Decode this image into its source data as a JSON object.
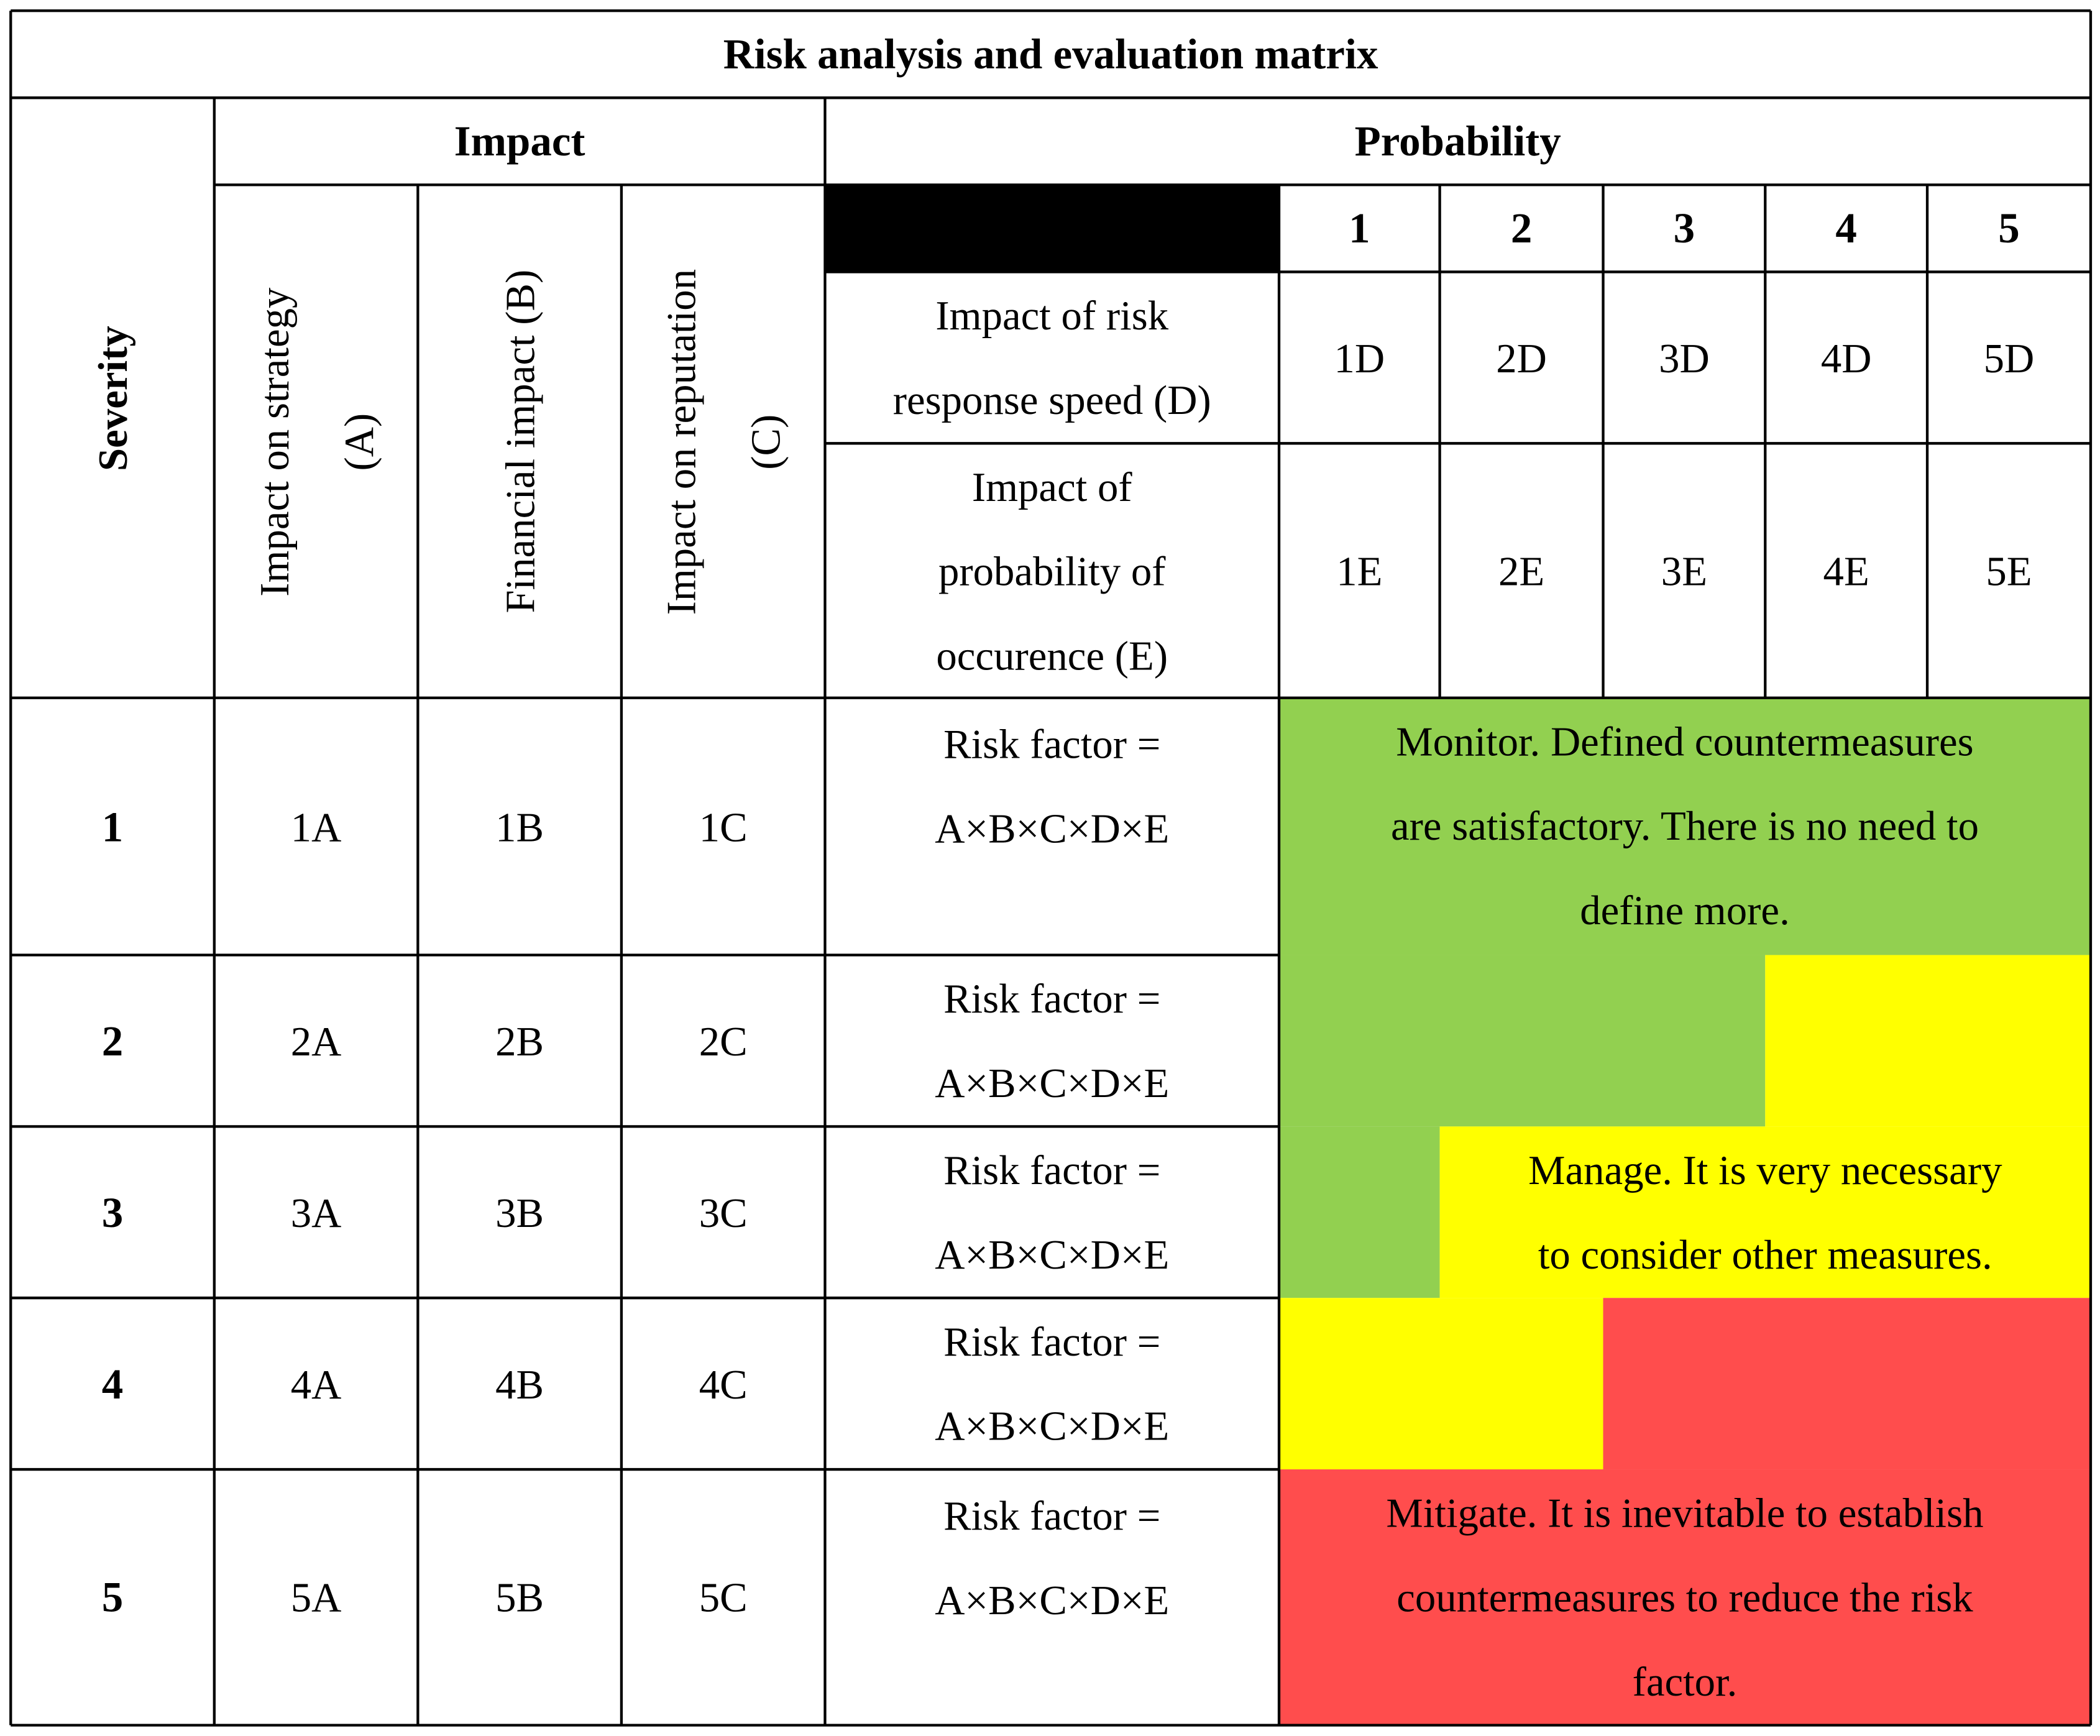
{
  "title": "Risk analysis and evaluation matrix",
  "severity_header": "Severity",
  "impact_header": "Impact",
  "probability_header": "Probability",
  "impact_columns": [
    {
      "code": "A",
      "label_line1": "Impact on strategy",
      "label_line2": "(A)"
    },
    {
      "code": "B",
      "label_line1": "Financial impact (B)",
      "label_line2": ""
    },
    {
      "code": "C",
      "label_line1": "Impact on reputation",
      "label_line2": "(C)"
    }
  ],
  "probability_levels": [
    "1",
    "2",
    "3",
    "4",
    "5"
  ],
  "factor_rows": [
    {
      "label_lines": [
        "Impact of risk",
        "response speed (D)"
      ],
      "cells": [
        "1D",
        "2D",
        "3D",
        "4D",
        "5D"
      ]
    },
    {
      "label_lines": [
        "Impact of",
        "probability of",
        "occurence (E)"
      ],
      "cells": [
        "1E",
        "2E",
        "3E",
        "4E",
        "5E"
      ]
    }
  ],
  "severity_rows": [
    {
      "level": "1",
      "cells": [
        "1A",
        "1B",
        "1C"
      ],
      "formula_line1": "Risk factor =",
      "formula_line2": "A×B×C×D×E"
    },
    {
      "level": "2",
      "cells": [
        "2A",
        "2B",
        "2C"
      ],
      "formula_line1": "Risk factor =",
      "formula_line2": "A×B×C×D×E"
    },
    {
      "level": "3",
      "cells": [
        "3A",
        "3B",
        "3C"
      ],
      "formula_line1": "Risk factor =",
      "formula_line2": "A×B×C×D×E"
    },
    {
      "level": "4",
      "cells": [
        "4A",
        "4B",
        "4C"
      ],
      "formula_line1": "Risk factor =",
      "formula_line2": "A×B×C×D×E"
    },
    {
      "level": "5",
      "cells": [
        "5A",
        "5B",
        "5C"
      ],
      "formula_line1": "Risk factor =",
      "formula_line2": "A×B×C×D×E"
    }
  ],
  "zones": {
    "monitor": {
      "color": "#92d050",
      "lines": [
        "Monitor. Defined countermeasures",
        "are satisfactory. There is no need to",
        "define more."
      ]
    },
    "manage": {
      "color": "#ffff00",
      "lines": [
        "Manage. It is very necessary",
        "to consider other measures."
      ]
    },
    "mitigate": {
      "color": "#ff4d4d",
      "lines": [
        "Mitigate. It is inevitable to establish",
        "countermeasures to reduce the risk",
        "factor."
      ]
    }
  }
}
